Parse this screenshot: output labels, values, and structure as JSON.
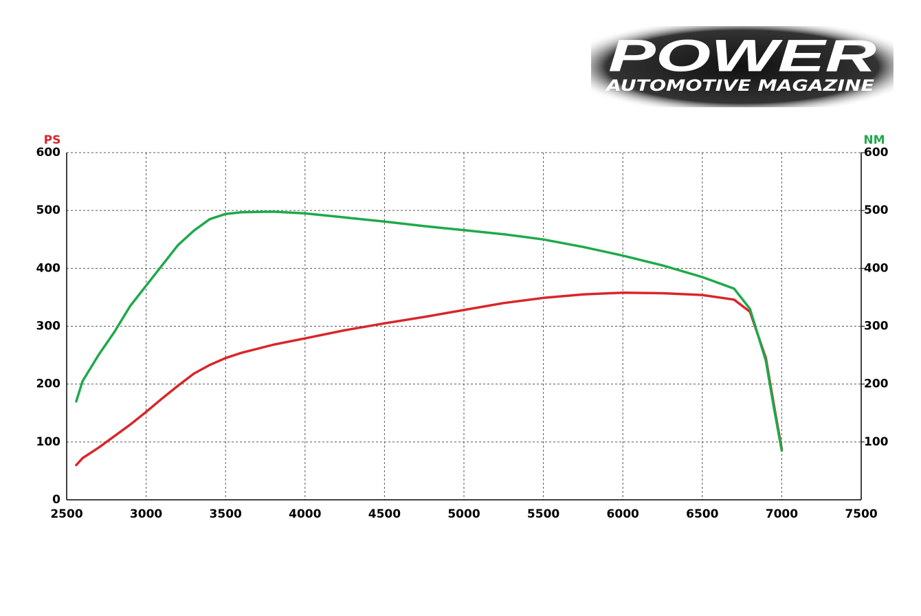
{
  "logo": {
    "title": "POWER",
    "subtitle": "AUTOMOTIVE MAGAZINE"
  },
  "chart_data": {
    "type": "line",
    "y_label": "PS",
    "y2_label": "NM",
    "x": [
      2560,
      2600,
      2700,
      2800,
      2900,
      3000,
      3100,
      3200,
      3300,
      3400,
      3500,
      3600,
      3800,
      4000,
      4250,
      4500,
      4750,
      5000,
      5250,
      5500,
      5750,
      6000,
      6250,
      6500,
      6700,
      6800,
      6900,
      6950,
      7000
    ],
    "series": [
      {
        "name": "PS",
        "color": "#d9262a",
        "axis": "y",
        "values": [
          60,
          72,
          90,
          110,
          130,
          152,
          175,
          197,
          218,
          233,
          245,
          254,
          268,
          279,
          293,
          305,
          316,
          328,
          340,
          349,
          355,
          358,
          357,
          354,
          346,
          325,
          245,
          165,
          88
        ]
      },
      {
        "name": "NM",
        "color": "#1fa94b",
        "axis": "y2",
        "values": [
          170,
          205,
          250,
          290,
          335,
          370,
          405,
          440,
          465,
          485,
          494,
          497,
          498,
          495,
          488,
          481,
          473,
          466,
          459,
          450,
          437,
          422,
          405,
          385,
          365,
          330,
          240,
          160,
          85
        ]
      }
    ],
    "xlim": [
      2500,
      7500
    ],
    "xticks": [
      2500,
      3000,
      3500,
      4000,
      4500,
      5000,
      5500,
      6000,
      6500,
      7000,
      7500
    ],
    "ylim": [
      0,
      600
    ],
    "yticks": [
      0,
      100,
      200,
      300,
      400,
      500,
      600
    ],
    "y2lim": [
      0,
      600
    ],
    "y2ticks": [
      100,
      200,
      300,
      400,
      500,
      600
    ],
    "grid": true
  }
}
